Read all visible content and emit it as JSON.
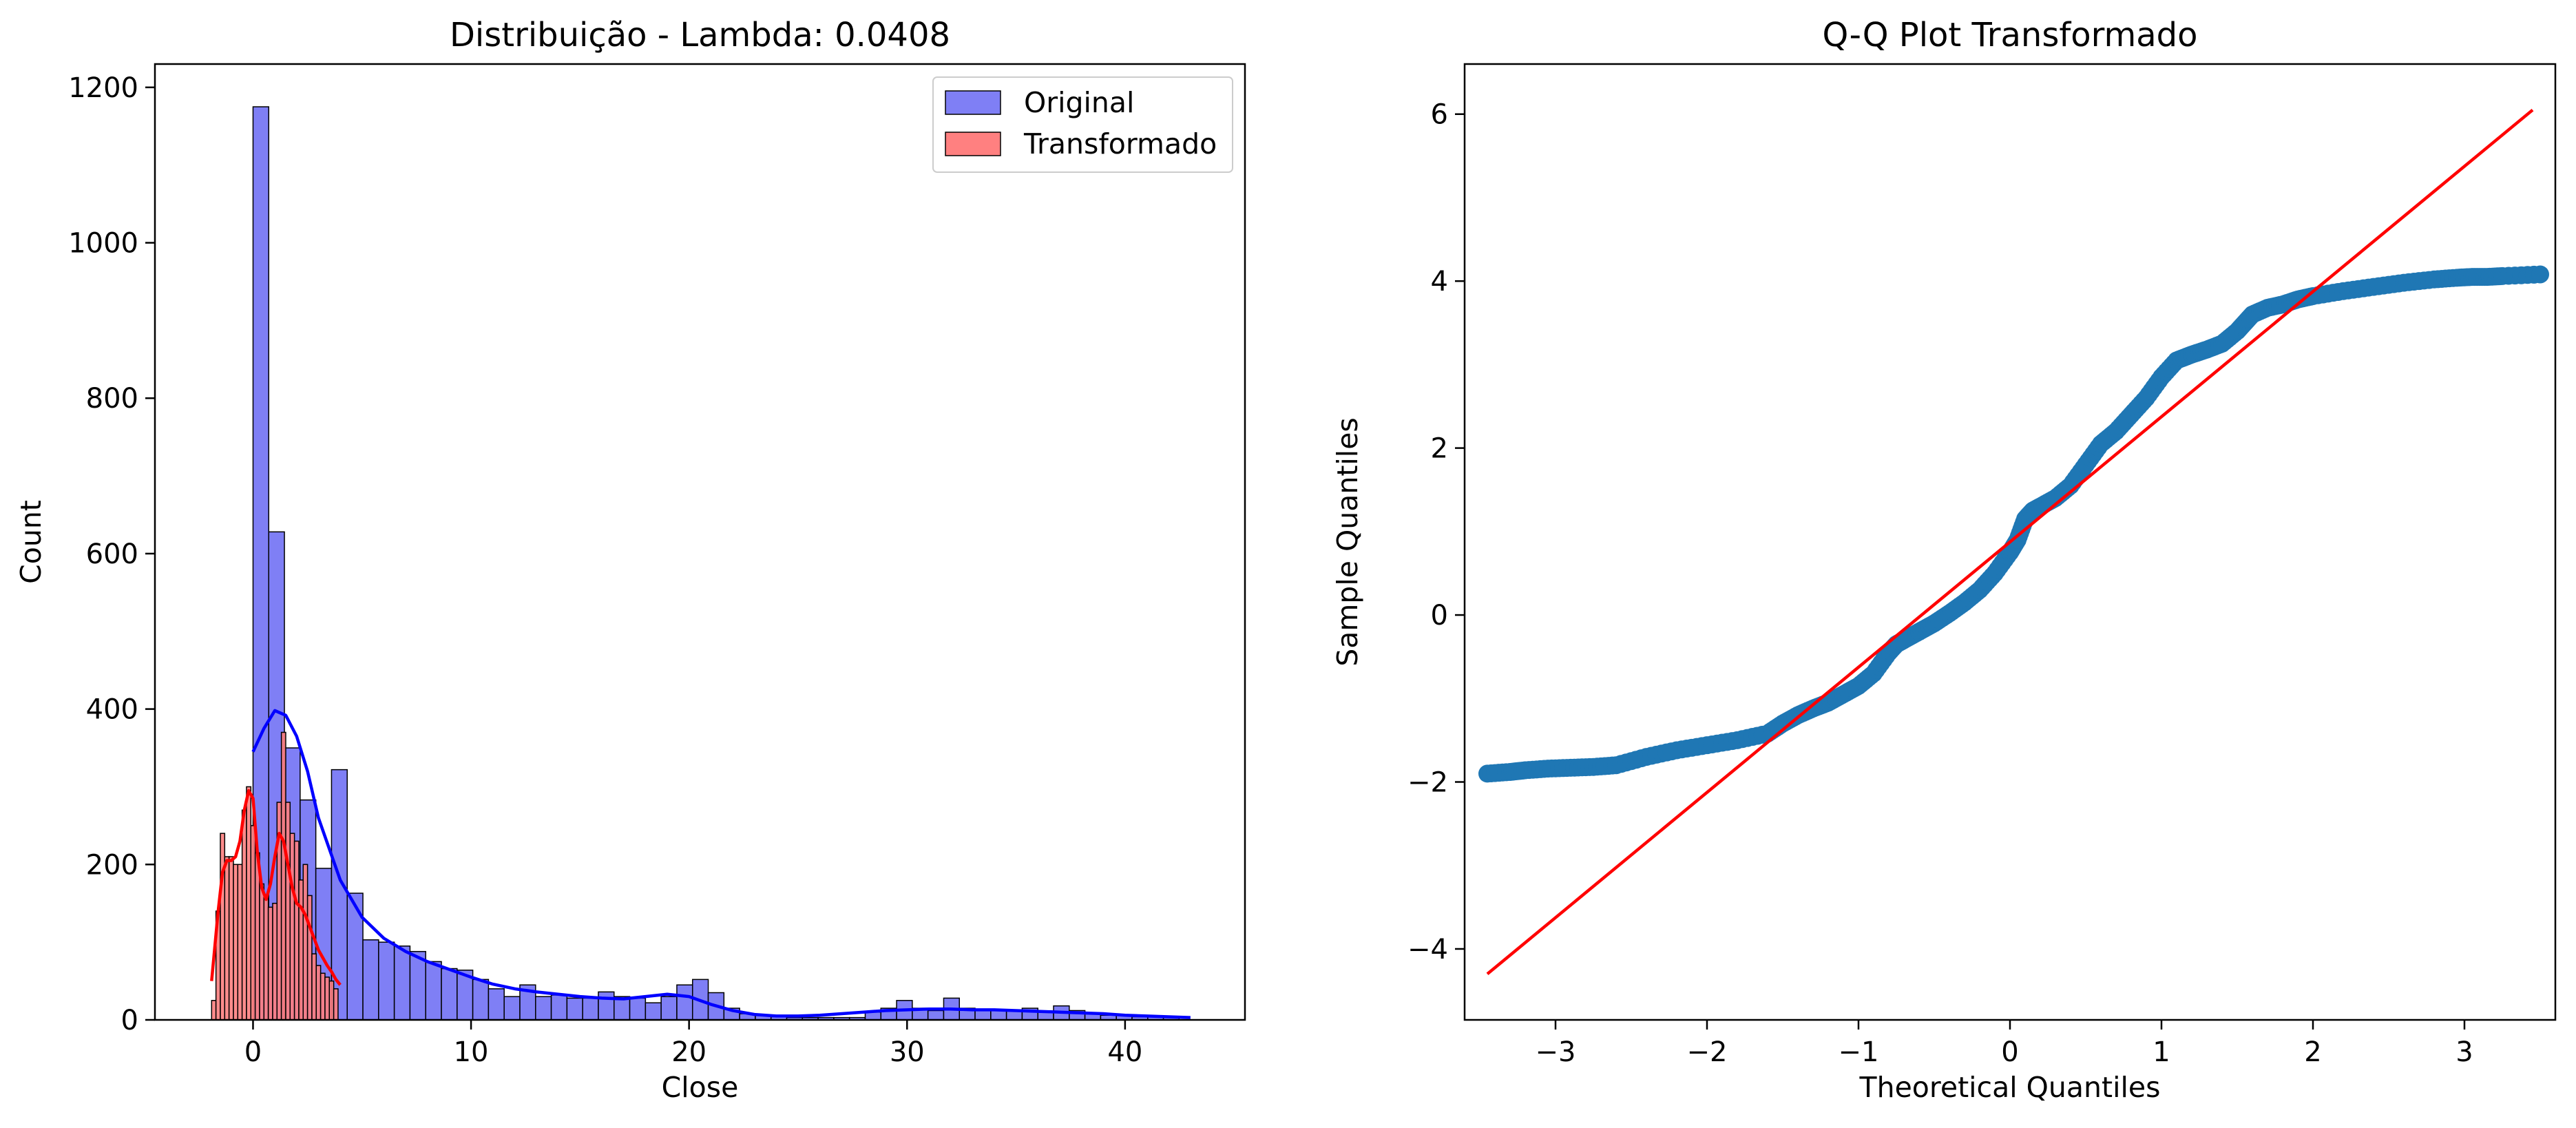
{
  "chart_data": [
    {
      "type": "histogram",
      "title": "Distribuição - Lambda: 0.0408",
      "xlabel": "Close",
      "ylabel": "Count",
      "xlim": [
        -4.5,
        45.5
      ],
      "ylim": [
        0,
        1230
      ],
      "xticks": [
        0,
        10,
        20,
        30,
        40
      ],
      "yticks": [
        0,
        200,
        400,
        600,
        800,
        1000,
        1200
      ],
      "grid": false,
      "legend_position": "top-right",
      "colors": {
        "original": "#7f7ff5",
        "original_kde": "#0000ff",
        "transformed": "#ff8080",
        "transformed_kde": "#ff0000",
        "edge": "#000000"
      },
      "series": [
        {
          "name": "Original",
          "bin_width": 0.72,
          "bin_start": 0.0,
          "values": [
            1175,
            628,
            350,
            283,
            195,
            322,
            163,
            103,
            100,
            95,
            88,
            75,
            66,
            64,
            52,
            40,
            30,
            45,
            30,
            32,
            28,
            28,
            36,
            30,
            28,
            22,
            30,
            45,
            52,
            35,
            15,
            8,
            6,
            4,
            3,
            3,
            3,
            3,
            3,
            10,
            15,
            25,
            15,
            12,
            28,
            15,
            12,
            12,
            12,
            15,
            10,
            18,
            12,
            8,
            6,
            6,
            4,
            5,
            3
          ],
          "kde": {
            "x": [
              0,
              0.5,
              1,
              1.5,
              2,
              2.5,
              3,
              4,
              5,
              6,
              7,
              8,
              9,
              10,
              11,
              12,
              13,
              14,
              15,
              16,
              17,
              18,
              19,
              20,
              21,
              22,
              23,
              24,
              25,
              26,
              27,
              28,
              29,
              30,
              31,
              32,
              33,
              34,
              35,
              36,
              37,
              38,
              39,
              40,
              41,
              42,
              43
            ],
            "y": [
              345,
              375,
              398,
              392,
              365,
              320,
              260,
              180,
              132,
              105,
              88,
              75,
              65,
              55,
              46,
              40,
              36,
              33,
              30,
              28,
              27,
              30,
              33,
              30,
              20,
              12,
              7,
              5,
              5,
              6,
              8,
              10,
              12,
              13,
              14,
              14,
              13,
              13,
              12,
              11,
              10,
              9,
              8,
              6,
              5,
              4,
              3
            ]
          }
        },
        {
          "name": "Transformado",
          "bin_width": 0.2,
          "bin_start": -1.9,
          "values": [
            25,
            140,
            240,
            210,
            210,
            200,
            200,
            270,
            300,
            250,
            215,
            175,
            160,
            145,
            150,
            280,
            370,
            280,
            240,
            230,
            180,
            200,
            160,
            85,
            70,
            60,
            55,
            50,
            40
          ],
          "kde": {
            "x": [
              -1.9,
              -1.6,
              -1.4,
              -1.2,
              -1.0,
              -0.8,
              -0.6,
              -0.4,
              -0.2,
              0.0,
              0.2,
              0.4,
              0.6,
              0.8,
              1.0,
              1.2,
              1.4,
              1.6,
              1.8,
              2.0,
              2.2,
              2.4,
              2.6,
              2.8,
              3.0,
              3.2,
              3.4,
              3.6,
              3.8,
              4.0
            ],
            "y": [
              50,
              140,
              190,
              205,
              205,
              210,
              230,
              270,
              295,
              285,
              215,
              170,
              155,
              175,
              210,
              240,
              230,
              200,
              170,
              150,
              145,
              135,
              120,
              105,
              90,
              80,
              70,
              62,
              52,
              45
            ]
          }
        }
      ]
    },
    {
      "type": "scatter",
      "title": "Q-Q Plot Transformado",
      "xlabel": "Theoretical Quantiles",
      "ylabel": "Sample Quantiles",
      "xlim": [
        -3.6,
        3.6
      ],
      "ylim": [
        -4.85,
        6.6
      ],
      "xticks": [
        -3,
        -2,
        -1,
        0,
        1,
        2,
        3
      ],
      "yticks": [
        -4,
        -2,
        0,
        2,
        4,
        6
      ],
      "grid": false,
      "colors": {
        "points": "#1f77b4",
        "reference_line": "#ff0000"
      },
      "reference_line": {
        "x": [
          -3.45,
          3.45
        ],
        "y": [
          -4.3,
          6.05
        ]
      },
      "series": [
        {
          "x": [
            -3.45,
            -3.3,
            -3.2,
            -3.05,
            -2.9,
            -2.75,
            -2.6,
            -2.4,
            -2.2,
            -2.0,
            -1.8,
            -1.6,
            -1.5,
            -1.4,
            -1.3,
            -1.2,
            -1.1,
            -1.0,
            -0.9,
            -0.8,
            -0.75,
            -0.7,
            -0.6,
            -0.5,
            -0.4,
            -0.3,
            -0.2,
            -0.1,
            0.0,
            0.05,
            0.1,
            0.15,
            0.2,
            0.3,
            0.4,
            0.5,
            0.6,
            0.7,
            0.8,
            0.9,
            1.0,
            1.1,
            1.2,
            1.3,
            1.4,
            1.5,
            1.55,
            1.6,
            1.7,
            1.8,
            1.9,
            2.0,
            2.2,
            2.4,
            2.6,
            2.8,
            2.95,
            3.05,
            3.15,
            3.25,
            3.5
          ],
          "y": [
            -1.9,
            -1.88,
            -1.86,
            -1.84,
            -1.83,
            -1.82,
            -1.8,
            -1.7,
            -1.62,
            -1.56,
            -1.5,
            -1.42,
            -1.3,
            -1.2,
            -1.12,
            -1.05,
            -0.95,
            -0.85,
            -0.7,
            -0.45,
            -0.35,
            -0.3,
            -0.2,
            -0.1,
            0.02,
            0.15,
            0.3,
            0.5,
            0.75,
            0.9,
            1.15,
            1.25,
            1.3,
            1.4,
            1.55,
            1.8,
            2.05,
            2.2,
            2.4,
            2.6,
            2.85,
            3.05,
            3.12,
            3.18,
            3.25,
            3.4,
            3.5,
            3.6,
            3.68,
            3.72,
            3.78,
            3.82,
            3.88,
            3.93,
            3.98,
            4.02,
            4.04,
            4.05,
            4.05,
            4.06,
            4.08
          ]
        }
      ]
    }
  ]
}
